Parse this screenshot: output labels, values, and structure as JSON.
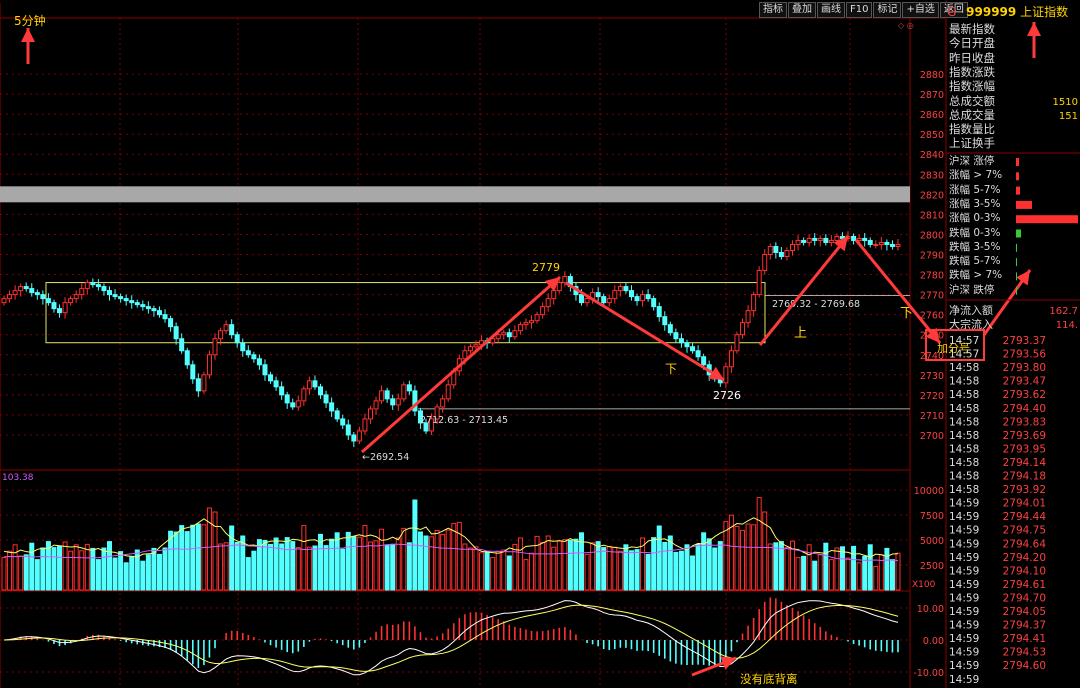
{
  "toolbar": {
    "items": [
      "指标",
      "叠加",
      "画线",
      "F10",
      "标记",
      "+自选",
      "返回"
    ]
  },
  "period_label": "5分钟",
  "header": {
    "prefix": "G",
    "code": "999999",
    "name": "上证指数"
  },
  "info_labels": [
    "最新指数",
    "今日开盘",
    "昨日收盘",
    "指数涨跌",
    "指数涨幅",
    "总成交额",
    "总成交量",
    "指数量比",
    "上证换手"
  ],
  "info_values": {
    "total_amount": "1510",
    "total_volume": "151"
  },
  "dist_labels": [
    "沪深 涨停",
    "涨幅 > 7%",
    "涨幅 5-7%",
    "涨幅 3-5%",
    "涨幅 0-3%",
    "跌幅 0-3%",
    "跌幅 3-5%",
    "跌幅 5-7%",
    "跌幅 > 7%",
    "沪深 跌停"
  ],
  "flow": {
    "net_label": "净流入额",
    "net_value": "162.7",
    "big_label": "大宗流入",
    "big_value": "114.",
    "tag": "加分号"
  },
  "ticks": {
    "times": [
      "14:57",
      "14:57",
      "14:58",
      "14:58",
      "14:58",
      "14:58",
      "14:58",
      "14:58",
      "14:58",
      "14:58",
      "14:58",
      "14:58",
      "14:59",
      "14:59",
      "14:59",
      "14:59",
      "14:59",
      "14:59",
      "14:59",
      "14:59",
      "14:59",
      "14:59",
      "14:59",
      "14:59",
      "14:59",
      "14:59",
      "14:59"
    ],
    "prices": [
      "2793.37",
      "2793.56",
      "2793.80",
      "2793.47",
      "2793.62",
      "2794.40",
      "2793.83",
      "2793.69",
      "2793.95",
      "2794.14",
      "2794.18",
      "2793.92",
      "2794.01",
      "2794.44",
      "2794.75",
      "2794.64",
      "2794.20",
      "2794.10",
      "2794.61",
      "2794.70",
      "2794.05",
      "2794.37",
      "2794.41",
      "2794.53",
      "2794.60",
      "",
      ""
    ]
  },
  "chart_data": [
    {
      "type": "candlestick",
      "title": "",
      "y_ticks": [
        2880,
        2870,
        2860,
        2850,
        2840,
        2830,
        2820,
        2810,
        2800,
        2790,
        2780,
        2770,
        2760,
        2750,
        2740,
        2730,
        2720,
        2710,
        2700
      ],
      "ylim": [
        2693,
        2887
      ],
      "close_series": [
        2768,
        2770,
        2772,
        2774,
        2773,
        2771,
        2770,
        2768,
        2766,
        2763,
        2761,
        2766,
        2768,
        2770,
        2773,
        2776,
        2775,
        2774,
        2772,
        2770,
        2769,
        2768,
        2767,
        2766,
        2765,
        2764,
        2763,
        2762,
        2760,
        2758,
        2754,
        2748,
        2742,
        2735,
        2728,
        2722,
        2730,
        2740,
        2748,
        2752,
        2755,
        2750,
        2746,
        2742,
        2740,
        2738,
        2735,
        2730,
        2727,
        2724,
        2720,
        2716,
        2714,
        2717,
        2723,
        2727,
        2724,
        2720,
        2716,
        2712,
        2708,
        2705,
        2700,
        2697,
        2702,
        2708,
        2713,
        2717,
        2722,
        2718,
        2715,
        2718,
        2725,
        2722,
        2712,
        2706,
        2702,
        2708,
        2714,
        2718,
        2725,
        2732,
        2738,
        2742,
        2744,
        2745,
        2747,
        2746,
        2748,
        2750,
        2751,
        2749,
        2752,
        2755,
        2756,
        2757,
        2760,
        2764,
        2768,
        2772,
        2776,
        2779,
        2774,
        2770,
        2766,
        2768,
        2771,
        2769,
        2766,
        2768,
        2772,
        2774,
        2772,
        2769,
        2767,
        2770,
        2768,
        2764,
        2759,
        2755,
        2751,
        2748,
        2746,
        2744,
        2742,
        2739,
        2735,
        2730,
        2728,
        2726,
        2734,
        2742,
        2750,
        2756,
        2762,
        2770,
        2782,
        2790,
        2794,
        2791,
        2789,
        2792,
        2795,
        2797,
        2796,
        2798,
        2797,
        2798,
        2796,
        2797,
        2799,
        2798,
        2799,
        2797,
        2798,
        2797,
        2795,
        2795,
        2796,
        2795,
        2794,
        2795
      ],
      "annotations": [
        {
          "text": "2779"
        },
        {
          "text": "2726"
        },
        {
          "text": "2692.54"
        },
        {
          "text": "2712.63 - 2713.45"
        },
        {
          "text": "2769.32 - 2769.68"
        },
        {
          "text": "上"
        },
        {
          "text": "下"
        },
        {
          "text": "下"
        }
      ]
    },
    {
      "type": "bar",
      "title": "",
      "series": [
        {
          "name": "",
          "values": []
        }
      ],
      "y_ticks": [
        10000,
        7500,
        5000,
        2500
      ],
      "unit_label": "X100",
      "top_label": "103.38"
    },
    {
      "type": "bar",
      "title": "",
      "y_ticks": [
        10.0,
        0.0,
        -10.0
      ],
      "annotations": [
        {
          "text": "没有底背离"
        }
      ]
    }
  ],
  "colors": {
    "up": "#ff3030",
    "down": "#54ffff",
    "ma_yellow": "#ffff66",
    "ma_purple": "#d05cff",
    "ma_white": "#ffffff",
    "arrow": "#ff3a3a",
    "box": "#e6e66a",
    "grid": "#7a0000"
  }
}
